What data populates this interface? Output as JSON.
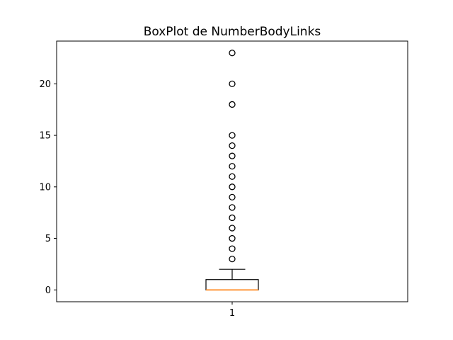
{
  "chart_data": {
    "type": "box",
    "title": "BoxPlot de NumberBodyLinks",
    "xlabel": "",
    "ylabel": "",
    "categories": [
      "1"
    ],
    "ylim": [
      -1.15,
      24.15
    ],
    "yticks": [
      0,
      5,
      10,
      15,
      20
    ],
    "grid": false,
    "series": [
      {
        "whisker_low": 0,
        "q1": 0,
        "median": 0,
        "q3": 1,
        "whisker_high": 2,
        "outliers": [
          3,
          4,
          5,
          6,
          7,
          8,
          9,
          10,
          11,
          12,
          13,
          14,
          15,
          18,
          20,
          23
        ]
      }
    ],
    "colors": {
      "box": "#000000",
      "median": "#ff7f0e",
      "outlier": "#000000"
    }
  }
}
